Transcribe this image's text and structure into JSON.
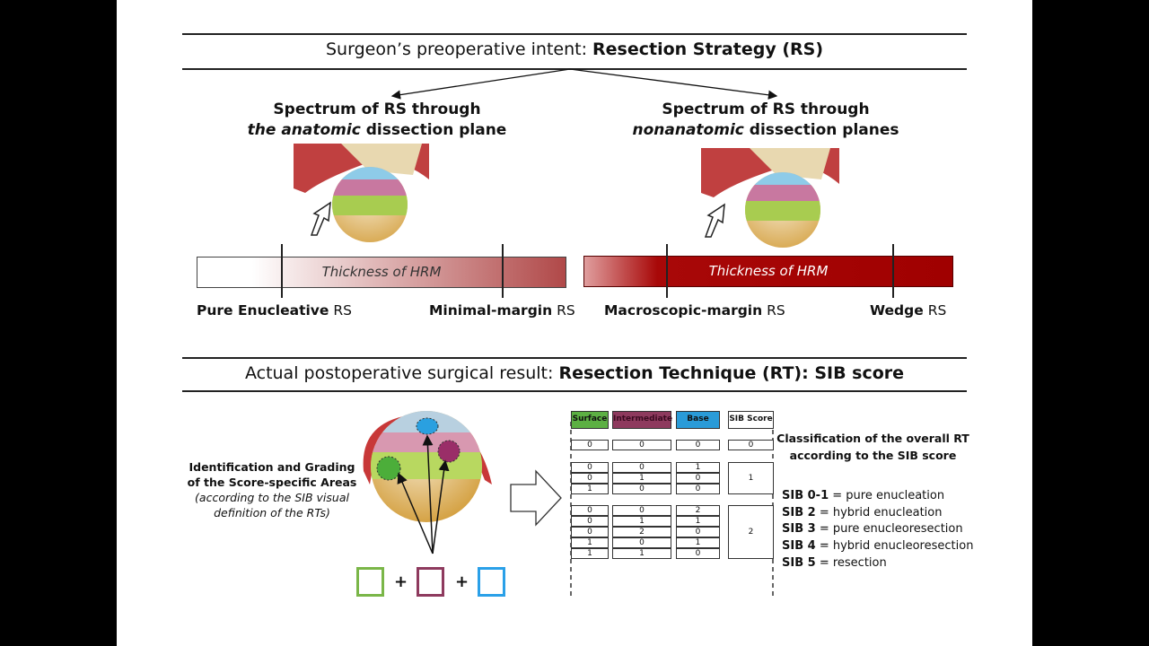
{
  "top": {
    "title_prefix": "Surgeon’s preoperative intent: ",
    "title_bold": "Resection Strategy (RS)"
  },
  "left": {
    "heading_line1": "Spectrum of RS through",
    "heading_em": "the anatomic",
    "heading_rest": " dissection plane",
    "bar_label": "Thickness of HRM",
    "label_a_bold": "Pure Enucleative",
    "label_a_rest": " RS",
    "label_b_bold": "Minimal-margin",
    "label_b_rest": " RS"
  },
  "right": {
    "heading_line1": "Spectrum of RS through",
    "heading_em": "nonanatomic",
    "heading_rest": " dissection planes",
    "bar_label": "Thickness of HRM",
    "label_a_bold": "Macroscopic-margin",
    "label_a_rest": " RS",
    "label_b_bold": "Wedge",
    "label_b_rest": " RS"
  },
  "bottom": {
    "title_prefix": "Actual postoperative surgical result: ",
    "title_bold": "Resection Technique (RT): SIB score",
    "ident_bold1": "Identification and Grading",
    "ident_bold2": "of the Score-specific Areas",
    "ident_it1": "(according to the SIB visual",
    "ident_it2": "definition of the RTs)",
    "plus": "+"
  },
  "table": {
    "headers": [
      "Surface",
      "Intermediate",
      "Base",
      "SIB Score"
    ],
    "header_colors": [
      "#5cb043",
      "#8e3a5e",
      "#2a9bd8",
      "#ffffff"
    ],
    "groups": [
      {
        "rows": [
          [
            "0",
            "0",
            "0"
          ]
        ],
        "score": "0"
      },
      {
        "rows": [
          [
            "0",
            "0",
            "1"
          ],
          [
            "0",
            "1",
            "0"
          ],
          [
            "1",
            "0",
            "0"
          ]
        ],
        "score": "1"
      },
      {
        "rows": [
          [
            "0",
            "0",
            "2"
          ],
          [
            "0",
            "1",
            "1"
          ],
          [
            "0",
            "2",
            "0"
          ],
          [
            "1",
            "0",
            "1"
          ],
          [
            "1",
            "1",
            "0"
          ]
        ],
        "score": "2"
      }
    ]
  },
  "classification": {
    "line1": "Classification of the overall RT",
    "line2": "according to the SIB score",
    "items": [
      {
        "k": "SIB 0-1",
        "v": " = pure enucleation"
      },
      {
        "k": "SIB 2",
        "v": " = hybrid enucleation"
      },
      {
        "k": "SIB 3",
        "v": " = pure enucleoresection"
      },
      {
        "k": "SIB 4",
        "v": " = hybrid enucleoresection"
      },
      {
        "k": "SIB 5",
        "v": " = resection"
      }
    ]
  }
}
